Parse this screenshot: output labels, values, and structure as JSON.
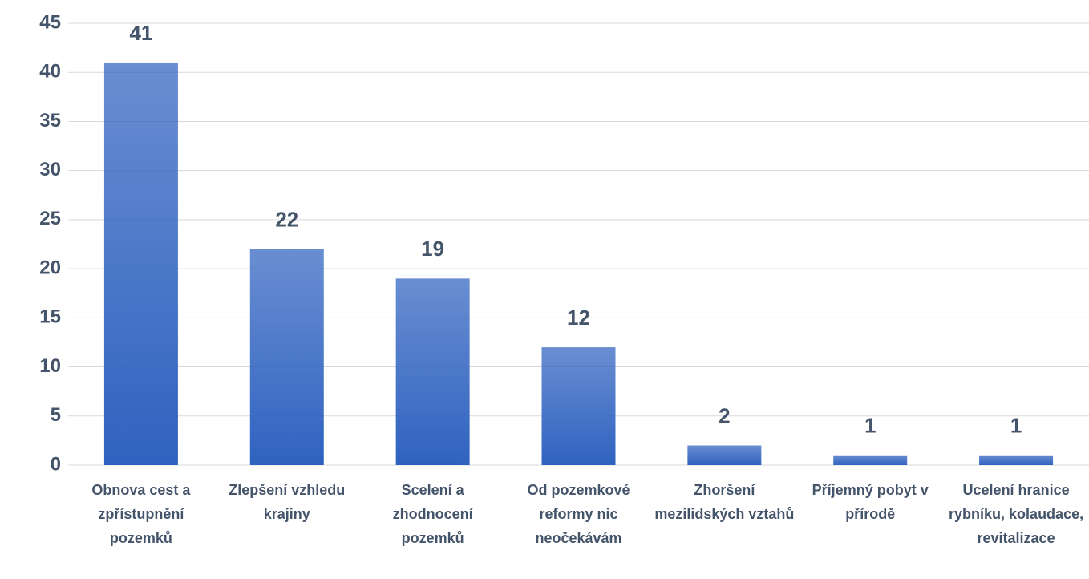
{
  "chart_data": {
    "type": "bar",
    "categories": [
      "Obnova cest a zpřístupnění pozemků",
      "Zlepšení vzhledu krajiny",
      "Scelení a zhodnocení pozemků",
      "Od pozemkové reformy nic neočekávám",
      "Zhoršení mezilidských vztahů",
      "Příjemný pobyt v přírodě",
      "Ucelení hranice rybníku, kolaudace, revitalizace"
    ],
    "values": [
      41,
      22,
      19,
      12,
      2,
      1,
      1
    ],
    "color": "#2f62c0",
    "ylim": [
      0,
      45
    ],
    "yticks": [
      0,
      5,
      10,
      15,
      20,
      25,
      30,
      35,
      40,
      45
    ],
    "grid": true
  }
}
